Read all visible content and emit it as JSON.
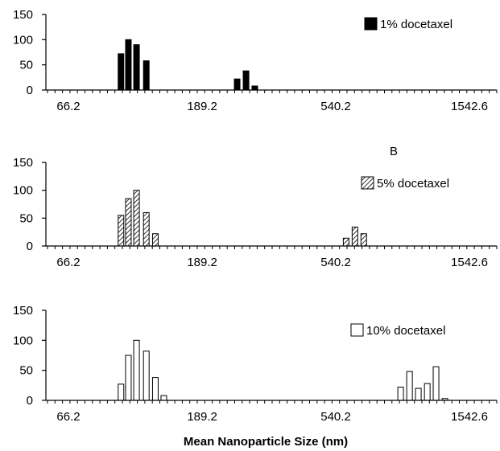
{
  "chart_data": [
    {
      "type": "bar",
      "title": "",
      "xlabel": "",
      "ylabel": "",
      "ylim": [
        0,
        150
      ],
      "yticks": [
        "0",
        "50",
        "100",
        "150"
      ],
      "xticks": [
        "66.2",
        "189.2",
        "540.2",
        "1542.6"
      ],
      "log_x": true,
      "grid": false,
      "panel_label": "",
      "legend": {
        "label": "1% docetaxel",
        "placement": "top-right",
        "pattern": "solid"
      },
      "series": [
        {
          "name": "1% docetaxel",
          "pattern": "solid",
          "x": [
            100,
            106,
            113,
            122,
            249,
            267,
            286
          ],
          "values": [
            72,
            100,
            90,
            58,
            22,
            38,
            8
          ]
        }
      ]
    },
    {
      "type": "bar",
      "title": "",
      "xlabel": "",
      "ylabel": "",
      "ylim": [
        0,
        150
      ],
      "yticks": [
        "0",
        "50",
        "100",
        "150"
      ],
      "xticks": [
        "66.2",
        "189.2",
        "540.2",
        "1542.6"
      ],
      "log_x": true,
      "grid": false,
      "panel_label": "B",
      "legend": {
        "label": "5% docetaxel",
        "placement": "top-right",
        "pattern": "hatched"
      },
      "series": [
        {
          "name": "5% docetaxel",
          "pattern": "hatched",
          "x": [
            100,
            106,
            113,
            122,
            131,
            586,
            628,
            673
          ],
          "values": [
            55,
            85,
            100,
            60,
            22,
            14,
            34,
            22
          ]
        }
      ]
    },
    {
      "type": "bar",
      "title": "",
      "xlabel": "Mean Nanoparticle Size (nm)",
      "ylabel": "",
      "ylim": [
        0,
        150
      ],
      "yticks": [
        "0",
        "50",
        "100",
        "150"
      ],
      "xticks": [
        "66.2",
        "189.2",
        "540.2",
        "1542.6"
      ],
      "log_x": true,
      "grid": false,
      "panel_label": "",
      "legend": {
        "label": "10% docetaxel",
        "placement": "top-right",
        "pattern": "open"
      },
      "series": [
        {
          "name": "10% docetaxel",
          "pattern": "open",
          "x": [
            100,
            106,
            113,
            122,
            131,
            140,
            150,
            899,
            964,
            1033,
            1108,
            1187,
            1273
          ],
          "values": [
            27,
            75,
            100,
            82,
            38,
            8,
            0,
            22,
            48,
            20,
            28,
            56,
            3
          ]
        }
      ]
    }
  ]
}
